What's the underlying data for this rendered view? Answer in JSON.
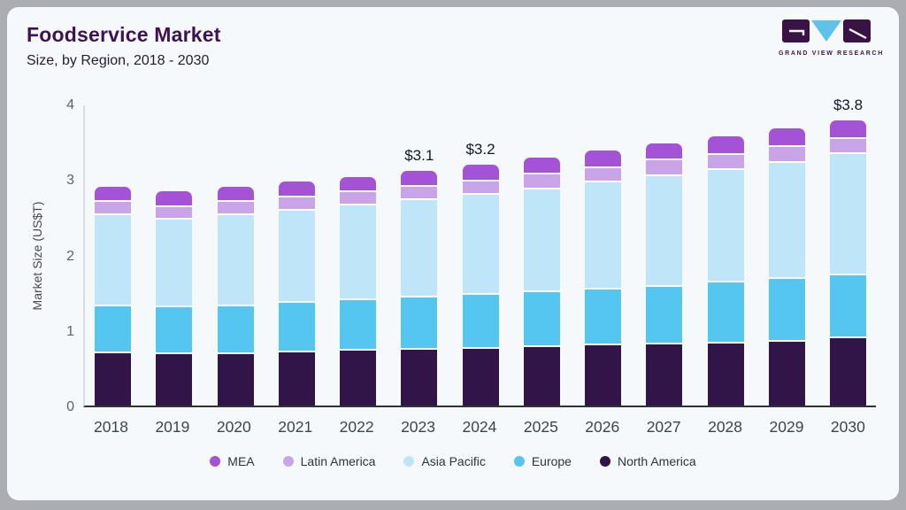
{
  "header": {
    "title": "Foodservice Market",
    "subtitle": "Size, by Region, 2018 - 2030"
  },
  "logo": {
    "text": "GRAND VIEW RESEARCH",
    "purple": "#3a1346",
    "blue": "#5fc2e9"
  },
  "chart_data": {
    "type": "bar",
    "stacked": true,
    "title": "Foodservice Market",
    "subtitle": "Size, by Region, 2018 - 2030",
    "xlabel": "",
    "ylabel": "Market Size (US$T)",
    "ylim": [
      0,
      4
    ],
    "yticks": [
      0,
      1,
      2,
      3,
      4
    ],
    "grid": false,
    "categories": [
      "2018",
      "2019",
      "2020",
      "2021",
      "2022",
      "2023",
      "2024",
      "2025",
      "2026",
      "2027",
      "2028",
      "2029",
      "2030"
    ],
    "stack_order": "bottom-to-top",
    "series": [
      {
        "name": "North America",
        "color": "#311549",
        "values": [
          0.72,
          0.7,
          0.7,
          0.73,
          0.75,
          0.76,
          0.78,
          0.8,
          0.82,
          0.83,
          0.85,
          0.87,
          0.91
        ]
      },
      {
        "name": "Europe",
        "color": "#55c6f0",
        "values": [
          0.62,
          0.62,
          0.64,
          0.65,
          0.67,
          0.69,
          0.71,
          0.73,
          0.74,
          0.77,
          0.8,
          0.83,
          0.84
        ]
      },
      {
        "name": "Asia Pacific",
        "color": "#bfe5f8",
        "values": [
          1.21,
          1.17,
          1.21,
          1.23,
          1.26,
          1.3,
          1.33,
          1.36,
          1.42,
          1.46,
          1.49,
          1.54,
          1.61
        ]
      },
      {
        "name": "Latin America",
        "color": "#c9a4e9",
        "values": [
          0.17,
          0.16,
          0.17,
          0.17,
          0.17,
          0.17,
          0.17,
          0.19,
          0.19,
          0.21,
          0.2,
          0.21,
          0.2
        ]
      },
      {
        "name": "MEA",
        "color": "#a553d6",
        "values": [
          0.18,
          0.19,
          0.18,
          0.19,
          0.18,
          0.19,
          0.2,
          0.2,
          0.21,
          0.2,
          0.23,
          0.22,
          0.22
        ]
      }
    ],
    "totals": [
      2.9,
      2.84,
      2.9,
      2.97,
      3.03,
      3.11,
      3.19,
      3.28,
      3.38,
      3.47,
      3.57,
      3.67,
      3.78
    ],
    "annotations": [
      {
        "category": "2023",
        "label": "$3.1"
      },
      {
        "category": "2024",
        "label": "$3.2"
      },
      {
        "category": "2030",
        "label": "$3.8"
      }
    ],
    "legend": {
      "position": "bottom",
      "order": [
        "MEA",
        "Latin America",
        "Asia Pacific",
        "Europe",
        "North America"
      ]
    }
  }
}
